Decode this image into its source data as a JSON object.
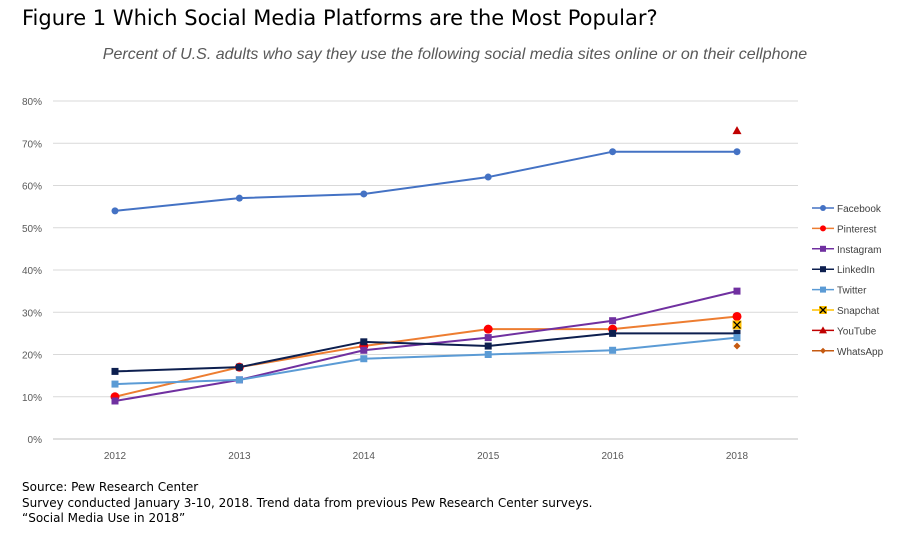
{
  "figure": {
    "title": "Figure 1 Which Social Media Platforms are the Most Popular?",
    "subtitle": "Percent of U.S. adults who say they use the following social media sites online or on their cellphone"
  },
  "footer": {
    "source": "Source: Pew Research Center",
    "note": "Survey conducted January 3-10, 2018.  Trend data from previous Pew Research Center surveys.",
    "report": "“Social Media Use in 2018”"
  },
  "chart_data": {
    "type": "line",
    "title": "Which Social Media Platforms are the Most Popular?",
    "subtitle": "Percent of U.S. adults who say they use the following social media sites online or on their cellphone",
    "x": [
      "2012",
      "2013",
      "2014",
      "2015",
      "2016",
      "2018"
    ],
    "ylim": [
      0,
      80
    ],
    "yticks": [
      "0%",
      "10%",
      "20%",
      "30%",
      "40%",
      "50%",
      "60%",
      "70%",
      "80%"
    ],
    "grid": true,
    "legend_position": "right",
    "series": [
      {
        "name": "Facebook",
        "color": "#4472c4",
        "marker": "circle",
        "values": [
          54,
          57,
          58,
          62,
          68,
          68
        ]
      },
      {
        "name": "Pinterest",
        "color": "#ed7d31",
        "marker_color": "#ff0000",
        "marker": "circle",
        "values": [
          10,
          17,
          22,
          26,
          26,
          29
        ]
      },
      {
        "name": "Instagram",
        "color": "#7030a0",
        "marker": "square",
        "values": [
          9,
          14,
          21,
          24,
          28,
          35
        ]
      },
      {
        "name": "LinkedIn",
        "color": "#0d1f4f",
        "marker": "square",
        "values": [
          16,
          17,
          23,
          22,
          25,
          25
        ]
      },
      {
        "name": "Twitter",
        "color": "#5b9bd5",
        "marker": "square",
        "values": [
          13,
          14,
          19,
          20,
          21,
          24
        ]
      },
      {
        "name": "Snapchat",
        "color": "#ffc000",
        "marker": "x",
        "values": [
          null,
          null,
          null,
          null,
          null,
          27
        ]
      },
      {
        "name": "YouTube",
        "color": "#c00000",
        "marker": "triangle",
        "values": [
          null,
          null,
          null,
          null,
          null,
          73
        ]
      },
      {
        "name": "WhatsApp",
        "color": "#c55a11",
        "marker": "diamond",
        "values": [
          null,
          null,
          null,
          null,
          null,
          22
        ]
      }
    ]
  }
}
